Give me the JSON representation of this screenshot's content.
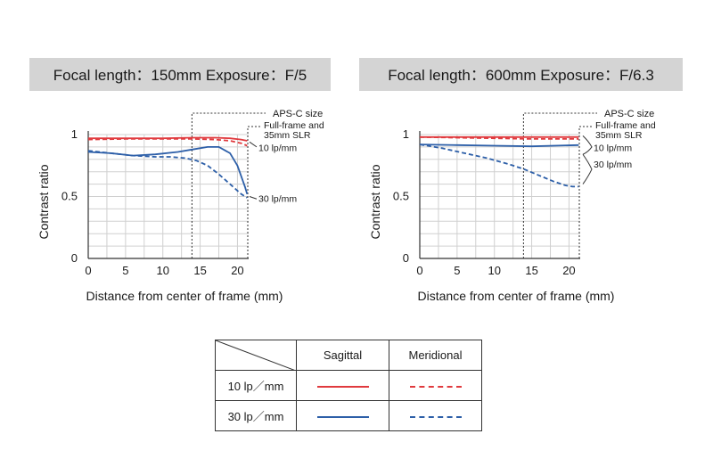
{
  "chart_data": [
    {
      "type": "line",
      "title": "Focal length：150mm   Exposure：F/5",
      "xlabel": "Distance from center of frame (mm)",
      "ylabel": "Contrast ratio",
      "xlim": [
        0,
        21.5
      ],
      "ylim": [
        0,
        1
      ],
      "xticks": [
        "0",
        "5",
        "10",
        "15",
        "20"
      ],
      "yticks": [
        "0",
        "0.5",
        "1"
      ],
      "grid": true,
      "aps_c_boundary": 13.9,
      "annotations": {
        "aps_c": "APS-C size",
        "full_frame": "Full-frame and\n35mm SLR",
        "lp10": "10 lp/mm",
        "lp30": "30 lp/mm"
      },
      "series": [
        {
          "name": "10 lp/mm Sagittal",
          "color": "#e03a3e",
          "dash": false,
          "x": [
            0,
            5,
            10,
            14,
            17,
            19,
            20.5,
            21.3
          ],
          "y": [
            0.97,
            0.97,
            0.97,
            0.975,
            0.975,
            0.97,
            0.96,
            0.95
          ]
        },
        {
          "name": "10 lp/mm Meridional",
          "color": "#e03a3e",
          "dash": true,
          "x": [
            0,
            5,
            10,
            14,
            17,
            19,
            20.5,
            21.3
          ],
          "y": [
            0.96,
            0.965,
            0.965,
            0.965,
            0.96,
            0.95,
            0.93,
            0.91
          ]
        },
        {
          "name": "30 lp/mm Sagittal",
          "color": "#2d5fa8",
          "dash": false,
          "x": [
            0,
            3,
            6,
            9,
            12,
            14,
            16,
            17.5,
            19,
            20,
            21,
            21.3
          ],
          "y": [
            0.86,
            0.85,
            0.83,
            0.84,
            0.86,
            0.88,
            0.9,
            0.9,
            0.85,
            0.75,
            0.58,
            0.52
          ]
        },
        {
          "name": "30 lp/mm Meridional",
          "color": "#2d5fa8",
          "dash": true,
          "x": [
            0,
            3,
            6,
            9,
            11,
            13,
            14.5,
            16,
            17.5,
            19,
            20.5,
            21.3
          ],
          "y": [
            0.87,
            0.85,
            0.83,
            0.82,
            0.82,
            0.81,
            0.79,
            0.75,
            0.68,
            0.6,
            0.52,
            0.49
          ]
        }
      ]
    },
    {
      "type": "line",
      "title": "Focal length：600mm   Exposure：F/6.3",
      "xlabel": "Distance from center of frame (mm)",
      "ylabel": "Contrast ratio",
      "xlim": [
        0,
        21.5
      ],
      "ylim": [
        0,
        1
      ],
      "xticks": [
        "0",
        "5",
        "10",
        "15",
        "20"
      ],
      "yticks": [
        "0",
        "0.5",
        "1"
      ],
      "grid": true,
      "aps_c_boundary": 13.9,
      "annotations": {
        "aps_c": "APS-C size",
        "full_frame": "Full-frame and\n35mm SLR",
        "lp10": "10 lp/mm",
        "lp30": "30 lp/mm"
      },
      "series": [
        {
          "name": "10 lp/mm Sagittal",
          "color": "#e03a3e",
          "dash": false,
          "x": [
            0,
            5,
            10,
            15,
            20,
            21.3
          ],
          "y": [
            0.98,
            0.98,
            0.98,
            0.98,
            0.98,
            0.98
          ]
        },
        {
          "name": "10 lp/mm Meridional",
          "color": "#e03a3e",
          "dash": true,
          "x": [
            0,
            5,
            10,
            15,
            20,
            21.3
          ],
          "y": [
            0.98,
            0.975,
            0.97,
            0.965,
            0.965,
            0.965
          ]
        },
        {
          "name": "30 lp/mm Sagittal",
          "color": "#2d5fa8",
          "dash": false,
          "x": [
            0,
            5,
            10,
            15,
            18,
            21.3
          ],
          "y": [
            0.92,
            0.915,
            0.91,
            0.905,
            0.91,
            0.915
          ]
        },
        {
          "name": "30 lp/mm Meridional",
          "color": "#2d5fa8",
          "dash": true,
          "x": [
            0,
            3,
            6,
            9,
            12,
            14,
            16,
            18,
            19.5,
            20.5,
            21.3
          ],
          "y": [
            0.92,
            0.89,
            0.85,
            0.81,
            0.76,
            0.72,
            0.67,
            0.62,
            0.59,
            0.58,
            0.58
          ]
        }
      ]
    }
  ],
  "legend_table": {
    "col_sagittal": "Sagittal",
    "col_meridional": "Meridional",
    "row_10": "10 lp／mm",
    "row_30": "30 lp／mm",
    "color_10": "#e03a3e",
    "color_30": "#2d5fa8"
  }
}
